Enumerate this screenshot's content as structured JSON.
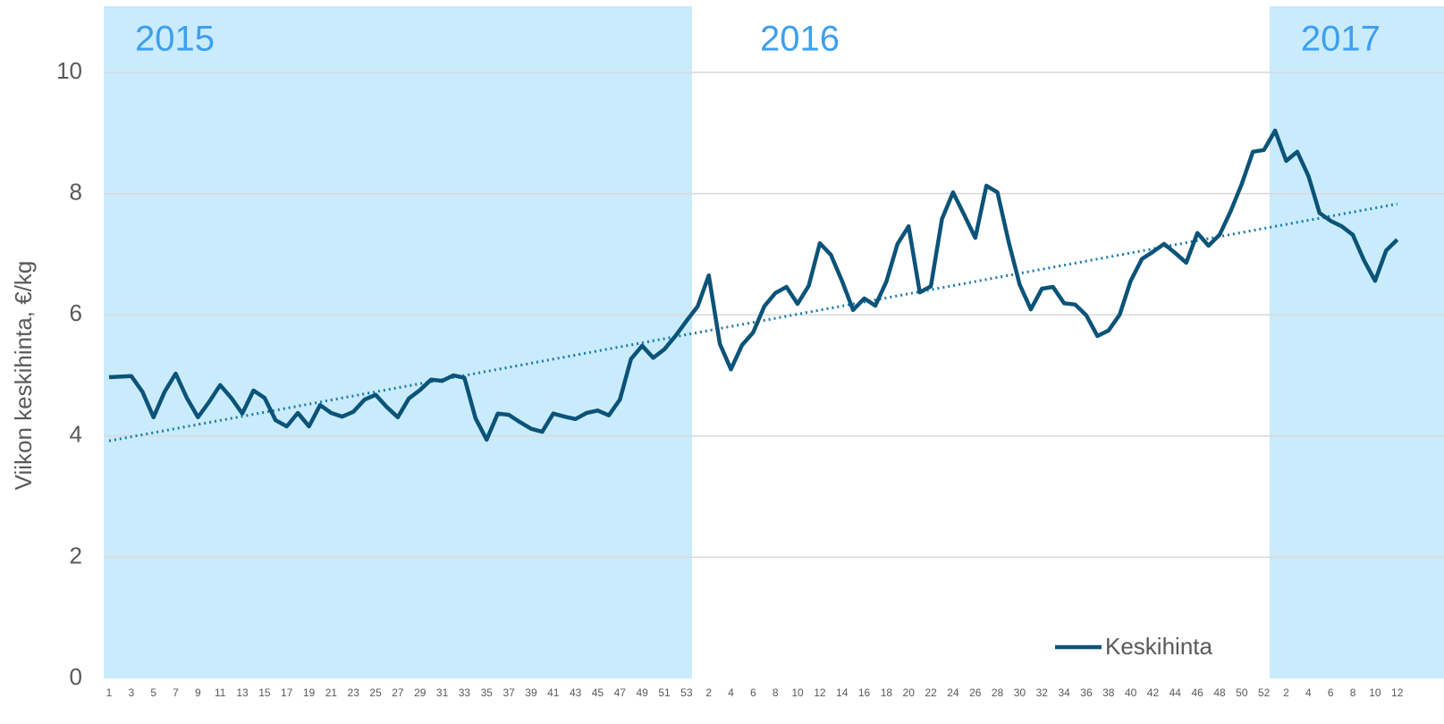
{
  "chart_data": {
    "type": "line",
    "y_label": "Viikon keskihinta, €/kg",
    "ylim": [
      0,
      10
    ],
    "yticks": [
      0,
      2,
      4,
      6,
      8,
      10
    ],
    "grid": true,
    "legend": "lower right",
    "groups": [
      {
        "label": "2015",
        "shaded": true,
        "categories": [
          "1",
          null,
          "3",
          null,
          "5",
          null,
          "7",
          null,
          "9",
          null,
          "11",
          null,
          "13",
          null,
          "15",
          null,
          "17",
          null,
          "19",
          null,
          "21",
          null,
          "23",
          null,
          "25",
          null,
          "27",
          null,
          "29",
          null,
          "31",
          null,
          "33",
          null,
          "35",
          null,
          "37",
          null,
          "39",
          null,
          "41",
          null,
          "43",
          null,
          "45",
          null,
          "47",
          null,
          "49",
          null,
          "51",
          null,
          "53"
        ]
      },
      {
        "label": "2016",
        "shaded": false,
        "categories": [
          null,
          "2",
          null,
          "4",
          null,
          "6",
          null,
          "8",
          null,
          "10",
          null,
          "12",
          null,
          "14",
          null,
          "16",
          null,
          "18",
          null,
          "20",
          null,
          "22",
          null,
          "24",
          null,
          "26",
          null,
          "28",
          null,
          "30",
          null,
          "32",
          null,
          "34",
          null,
          "36",
          null,
          "38",
          null,
          "40",
          null,
          "42",
          null,
          "44",
          null,
          "46",
          null,
          "48",
          null,
          "50",
          null,
          "52"
        ]
      },
      {
        "label": "2017",
        "shaded": true,
        "categories": [
          null,
          "2",
          null,
          "4",
          null,
          "6",
          null,
          "8",
          null,
          "10",
          null,
          "12"
        ]
      }
    ],
    "band_color": "#c9ebfb",
    "group_label_color": "#3d9ff0",
    "series": [
      {
        "name": "Keskihinta",
        "color": "#0b5378",
        "values": [
          4.97,
          4.98,
          4.99,
          4.73,
          4.31,
          4.73,
          5.03,
          4.63,
          4.31,
          4.56,
          4.84,
          4.63,
          4.37,
          4.75,
          4.63,
          4.26,
          4.16,
          4.38,
          4.16,
          4.51,
          4.38,
          4.32,
          4.4,
          4.6,
          4.68,
          4.48,
          4.31,
          4.62,
          4.76,
          4.93,
          4.91,
          5.0,
          4.96,
          4.29,
          3.94,
          4.37,
          4.35,
          4.23,
          4.12,
          4.07,
          4.37,
          4.32,
          4.28,
          4.38,
          4.42,
          4.34,
          4.6,
          5.27,
          5.49,
          5.29,
          5.43,
          5.65,
          5.9,
          6.14,
          6.65,
          5.52,
          5.1,
          5.5,
          5.71,
          6.14,
          6.36,
          6.46,
          6.18,
          6.48,
          7.18,
          6.99,
          6.56,
          6.08,
          6.27,
          6.15,
          6.55,
          7.17,
          7.46,
          6.37,
          6.47,
          7.58,
          8.02,
          7.65,
          7.27,
          8.13,
          8.02,
          7.21,
          6.5,
          6.09,
          6.43,
          6.46,
          6.19,
          6.17,
          5.99,
          5.65,
          5.74,
          6.0,
          6.56,
          6.92,
          7.04,
          7.17,
          7.02,
          6.86,
          7.35,
          7.14,
          7.32,
          7.71,
          8.16,
          8.69,
          8.72,
          9.04,
          8.54,
          8.69,
          8.29,
          7.68,
          7.55,
          7.46,
          7.32,
          6.9,
          6.56,
          7.06,
          7.24
        ]
      }
    ],
    "trendline": {
      "color": "#1a7aaa",
      "values": [
        3.92,
        7.83
      ]
    }
  }
}
